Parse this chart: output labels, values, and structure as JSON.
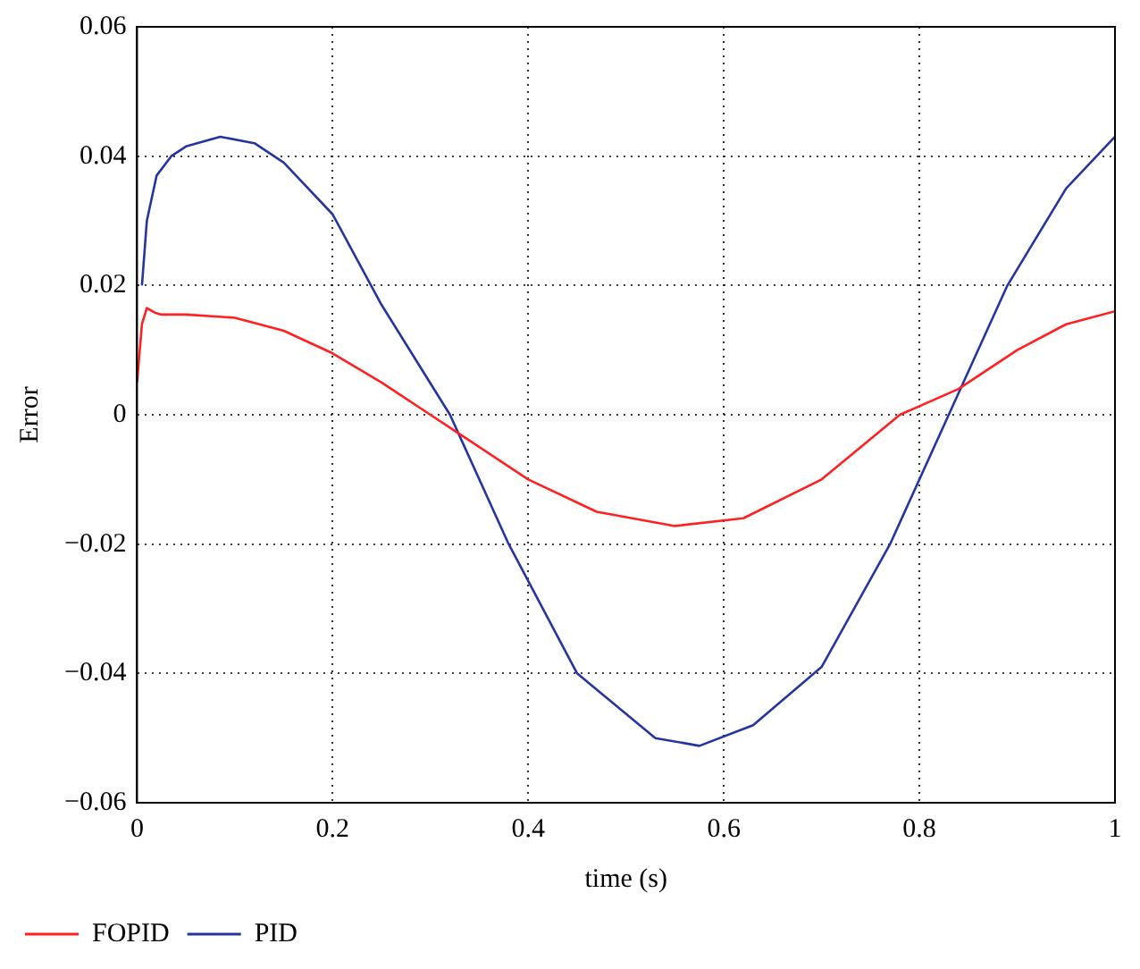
{
  "chart_data": {
    "type": "line",
    "xlabel": "time (s)",
    "ylabel": "Error",
    "xlim": [
      0,
      1
    ],
    "xticks": [
      0,
      0.2,
      0.4,
      0.6,
      0.8,
      1
    ],
    "ylim": [
      -0.06,
      0.06
    ],
    "yticks": [
      -0.06,
      -0.04,
      -0.02,
      0,
      0.02,
      0.04,
      0.06
    ],
    "grid": true,
    "legend": "bottom left",
    "marker": "none",
    "line_style": "solid",
    "series": [
      {
        "name": "FOPID",
        "color": "#ff2020",
        "x": [
          0,
          0.005,
          0.01,
          0.018,
          0.025,
          0.05,
          0.1,
          0.15,
          0.2,
          0.25,
          0.3,
          0.33,
          0.4,
          0.47,
          0.55,
          0.62,
          0.7,
          0.78,
          0.84,
          0.9,
          0.95,
          1
        ],
        "values": [
          0.005,
          0.014,
          0.0165,
          0.0158,
          0.0155,
          0.0155,
          0.015,
          0.013,
          0.0095,
          0.005,
          0,
          -0.003,
          -0.01,
          -0.015,
          -0.0172,
          -0.016,
          -0.01,
          0,
          0.004,
          0.01,
          0.014,
          0.016
        ]
      },
      {
        "name": "PID",
        "color": "#2535a0",
        "x": [
          0.005,
          0.01,
          0.02,
          0.035,
          0.05,
          0.085,
          0.12,
          0.15,
          0.2,
          0.25,
          0.32,
          0.38,
          0.45,
          0.53,
          0.575,
          0.63,
          0.7,
          0.77,
          0.83,
          0.89,
          0.95,
          1
        ],
        "values": [
          0.02,
          0.03,
          0.037,
          0.04,
          0.0415,
          0.043,
          0.042,
          0.039,
          0.031,
          0.017,
          0,
          -0.02,
          -0.04,
          -0.05,
          -0.0512,
          -0.048,
          -0.039,
          -0.02,
          0,
          0.02,
          0.035,
          0.043
        ]
      }
    ]
  }
}
